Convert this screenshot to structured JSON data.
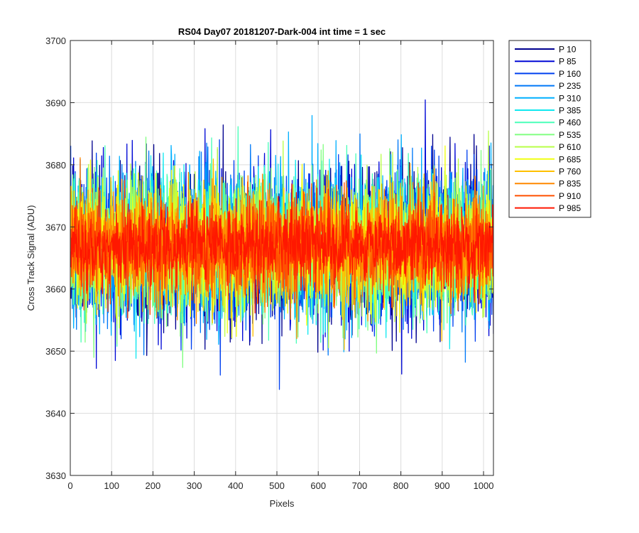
{
  "chart_data": {
    "type": "line",
    "title": "RS04 Day07 20181207-Dark-004 int time = 1 sec",
    "xlabel": "Pixels",
    "ylabel": "Cross Track Signal (ADU)",
    "xlim": [
      0,
      1024
    ],
    "ylim": [
      3630,
      3700
    ],
    "xticks": [
      0,
      100,
      200,
      300,
      400,
      500,
      600,
      700,
      800,
      900,
      1000
    ],
    "yticks": [
      3630,
      3640,
      3650,
      3660,
      3670,
      3680,
      3690,
      3700
    ],
    "grid": true,
    "legend_position": "outside-top-right",
    "n_points": 1024,
    "signal_mean": 3667,
    "series": [
      {
        "name": "P 10",
        "color": "#00008F",
        "spread": 16
      },
      {
        "name": "P 85",
        "color": "#0008D6",
        "spread": 16
      },
      {
        "name": "P 160",
        "color": "#0040F0",
        "spread": 15
      },
      {
        "name": "P 235",
        "color": "#0078F8",
        "spread": 15
      },
      {
        "name": "P 310",
        "color": "#00B0FF",
        "spread": 15
      },
      {
        "name": "P 385",
        "color": "#10E8F0",
        "spread": 14
      },
      {
        "name": "P 460",
        "color": "#48FFB8",
        "spread": 14
      },
      {
        "name": "P 535",
        "color": "#80FF80",
        "spread": 14
      },
      {
        "name": "P 610",
        "color": "#B8FF48",
        "spread": 13
      },
      {
        "name": "P 685",
        "color": "#F0FF10",
        "spread": 13
      },
      {
        "name": "P 760",
        "color": "#FFC000",
        "spread": 12
      },
      {
        "name": "P 835",
        "color": "#FF8800",
        "spread": 11
      },
      {
        "name": "P 910",
        "color": "#FF5000",
        "spread": 10
      },
      {
        "name": "P 985",
        "color": "#FF1800",
        "spread": 8
      }
    ]
  }
}
